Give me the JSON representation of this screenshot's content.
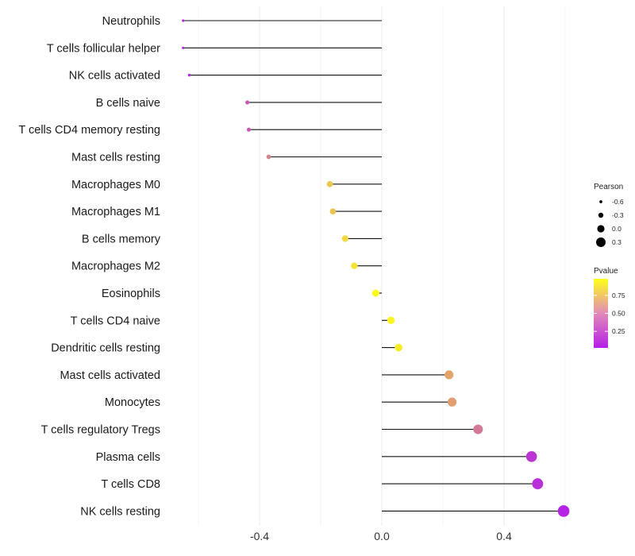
{
  "chart_data": {
    "type": "lollipop",
    "title": "",
    "xlabel": "",
    "ylabel": "",
    "xlim": [
      -0.66,
      0.64
    ],
    "xticks": [
      -0.4,
      0.0,
      0.4
    ],
    "xtick_labels": [
      "-0.4",
      "0.0",
      "0.4"
    ],
    "grid": true,
    "legend_position": "right",
    "categories": [
      "Neutrophils",
      "T cells follicular helper",
      "NK cells activated",
      "B cells naive",
      "T cells CD4 memory resting",
      "Mast cells resting",
      "Macrophages M0",
      "Macrophages M1",
      "B cells memory",
      "Macrophages M2",
      "Eosinophils",
      "T cells CD4 naive",
      "Dendritic cells resting",
      "Mast cells activated",
      "Monocytes",
      "T cells regulatory  Tregs",
      "Plasma cells",
      "T cells CD8",
      "NK cells resting"
    ],
    "pearson": [
      -0.65,
      -0.65,
      -0.63,
      -0.44,
      -0.435,
      -0.37,
      -0.17,
      -0.16,
      -0.12,
      -0.09,
      -0.02,
      0.03,
      0.055,
      0.22,
      0.23,
      0.315,
      0.49,
      0.51,
      0.595
    ],
    "pvalue": [
      0.02,
      0.02,
      0.03,
      0.25,
      0.27,
      0.45,
      0.75,
      0.73,
      0.82,
      0.88,
      0.98,
      0.95,
      0.92,
      0.6,
      0.57,
      0.4,
      0.1,
      0.07,
      0.02
    ],
    "size_legend": {
      "title": "Pearson",
      "labels": [
        "-0.6",
        "-0.3",
        "0.0",
        "0.3"
      ],
      "values": [
        -0.6,
        -0.3,
        0.0,
        0.3
      ]
    },
    "color_legend": {
      "title": "Pvalue",
      "labels": [
        "0.75",
        "0.50",
        "0.25"
      ],
      "values": [
        0.75,
        0.5,
        0.25
      ],
      "low_color": "#b41fe8",
      "high_color": "#ffff1a"
    }
  }
}
